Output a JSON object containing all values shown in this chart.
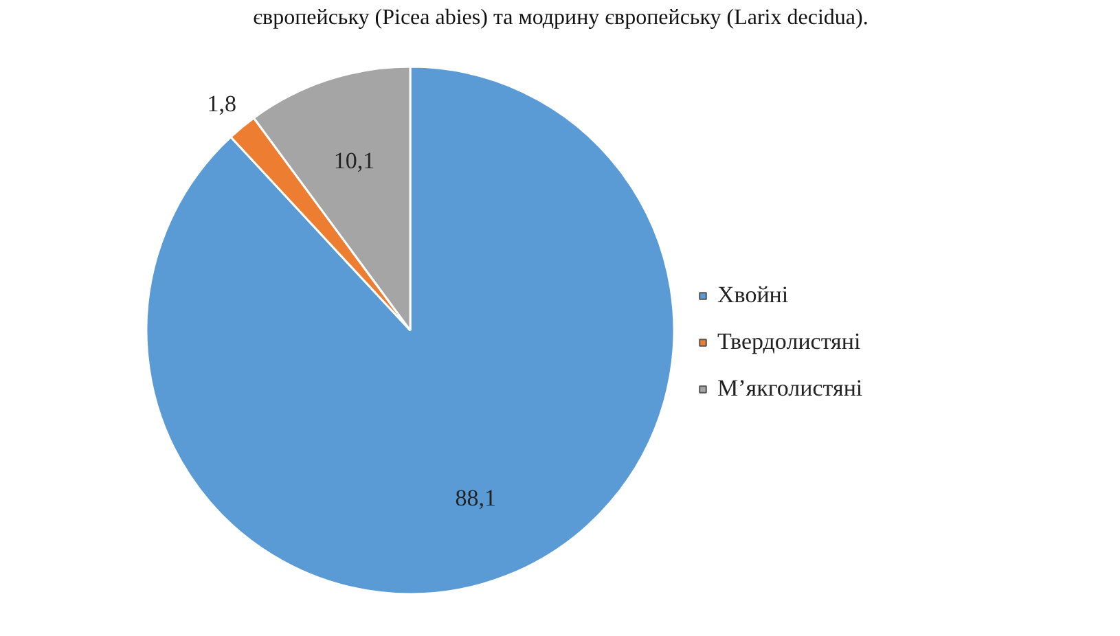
{
  "chart_data": {
    "type": "pie",
    "categories": [
      "Хвойні",
      "Твердолистяні",
      "М’якголистяні"
    ],
    "values": [
      88.1,
      1.8,
      10.1
    ],
    "value_labels": [
      "88,1",
      "1,8",
      "10,1"
    ],
    "colors": [
      "#5b9bd5",
      "#ed7d31",
      "#a5a5a5"
    ],
    "legend": "right",
    "annotations": [
      "європейську (Picea abies) та модрину європейську (Larix decidua)."
    ]
  }
}
